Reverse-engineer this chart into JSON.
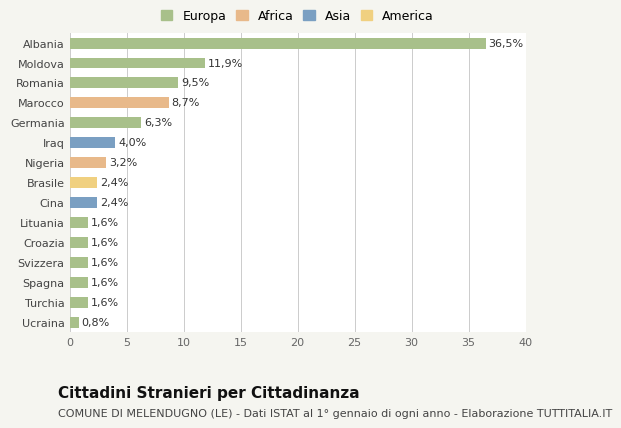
{
  "categories": [
    "Albania",
    "Moldova",
    "Romania",
    "Marocco",
    "Germania",
    "Iraq",
    "Nigeria",
    "Brasile",
    "Cina",
    "Lituania",
    "Croazia",
    "Svizzera",
    "Spagna",
    "Turchia",
    "Ucraina"
  ],
  "values": [
    36.5,
    11.9,
    9.5,
    8.7,
    6.3,
    4.0,
    3.2,
    2.4,
    2.4,
    1.6,
    1.6,
    1.6,
    1.6,
    1.6,
    0.8
  ],
  "labels": [
    "36,5%",
    "11,9%",
    "9,5%",
    "8,7%",
    "6,3%",
    "4,0%",
    "3,2%",
    "2,4%",
    "2,4%",
    "1,6%",
    "1,6%",
    "1,6%",
    "1,6%",
    "1,6%",
    "0,8%"
  ],
  "colors": [
    "#a8c08a",
    "#a8c08a",
    "#a8c08a",
    "#e8b98a",
    "#a8c08a",
    "#7a9fc2",
    "#e8b98a",
    "#f0d080",
    "#7a9fc2",
    "#a8c08a",
    "#a8c08a",
    "#a8c08a",
    "#a8c08a",
    "#a8c08a",
    "#a8c08a"
  ],
  "legend_labels": [
    "Europa",
    "Africa",
    "Asia",
    "America"
  ],
  "legend_colors": [
    "#a8c08a",
    "#e8b98a",
    "#7a9fc2",
    "#f0d080"
  ],
  "xlim": [
    0,
    40
  ],
  "xticks": [
    0,
    5,
    10,
    15,
    20,
    25,
    30,
    35,
    40
  ],
  "title": "Cittadini Stranieri per Cittadinanza",
  "subtitle": "COMUNE DI MELENDUGNO (LE) - Dati ISTAT al 1° gennaio di ogni anno - Elaborazione TUTTITALIA.IT",
  "background_color": "#f5f5f0",
  "bar_background": "#ffffff",
  "grid_color": "#cccccc",
  "title_fontsize": 11,
  "subtitle_fontsize": 8,
  "label_fontsize": 8,
  "tick_fontsize": 8,
  "legend_fontsize": 9
}
